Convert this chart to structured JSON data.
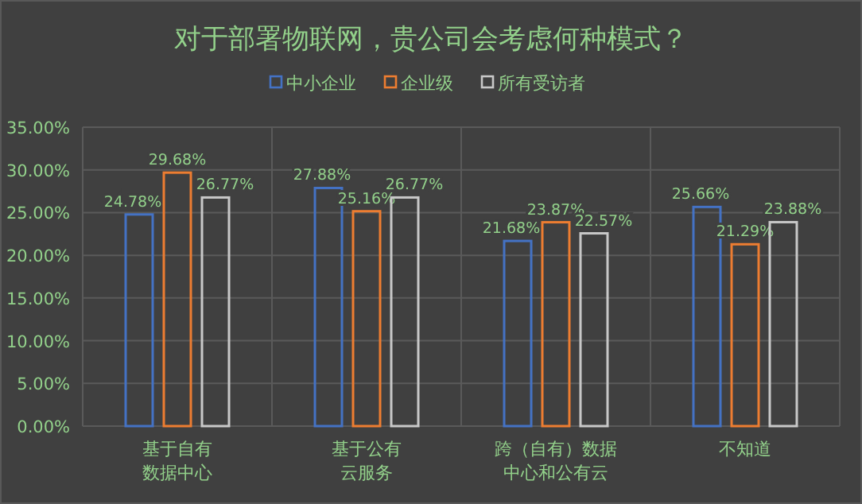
{
  "chart_data": {
    "type": "bar",
    "title": "对于部署物联网，贵公司会考虑何种模式？",
    "categories": [
      "基于自有数据中心",
      "基于公有云服务",
      "跨（自有）数据中心和公有云",
      "不知道"
    ],
    "series": [
      {
        "name": "中小企业",
        "color": "#4472c4",
        "values": [
          24.78,
          27.88,
          21.68,
          25.66
        ],
        "value_labels": [
          "24.78%",
          "27.88%",
          "21.68%",
          "25.66%"
        ]
      },
      {
        "name": "企业级",
        "color": "#ed7d31",
        "values": [
          29.68,
          25.16,
          23.87,
          21.29
        ],
        "value_labels": [
          "29.68%",
          "25.16%",
          "23.87%",
          "21.29%"
        ]
      },
      {
        "name": "所有受访者",
        "color": "#c8c8c8",
        "values": [
          26.77,
          26.77,
          22.57,
          23.88
        ],
        "value_labels": [
          "26.77%",
          "26.77%",
          "22.57%",
          "23.88%"
        ]
      }
    ],
    "ylim": [
      0,
      35
    ],
    "yticks": [
      {
        "value": 0,
        "label": "0.00%"
      },
      {
        "value": 5,
        "label": "5.00%"
      },
      {
        "value": 10,
        "label": "10.00%"
      },
      {
        "value": 15,
        "label": "15.00%"
      },
      {
        "value": 20,
        "label": "20.00%"
      },
      {
        "value": 25,
        "label": "25.00%"
      },
      {
        "value": 30,
        "label": "30.00%"
      },
      {
        "value": 35,
        "label": "35.00%"
      }
    ],
    "grid": true,
    "legend": "top"
  }
}
